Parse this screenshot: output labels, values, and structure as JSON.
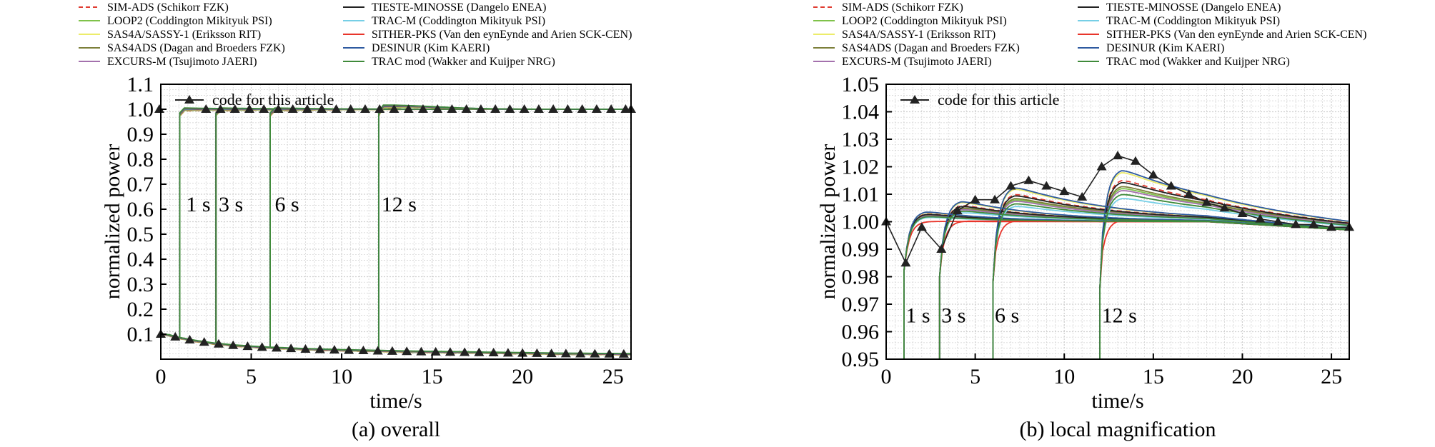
{
  "legend": {
    "series": [
      {
        "name": "SIM-ADS (Schikorr FZK)",
        "color": "#e03c31",
        "dash": true
      },
      {
        "name": "LOOP2 (Coddington Mikityuk PSI)",
        "color": "#7fc24a",
        "dash": false
      },
      {
        "name": "SAS4A/SASSY-1 (Eriksson RIT)",
        "color": "#ecec6a",
        "dash": false
      },
      {
        "name": "SAS4ADS (Dagan and Broeders FZK)",
        "color": "#7c7f3a",
        "dash": false
      },
      {
        "name": "EXCURS-M (Tsujimoto JAERI)",
        "color": "#a471ad",
        "dash": false
      },
      {
        "name": "TIESTE-MINOSSE (Dangelo ENEA)",
        "color": "#222222",
        "dash": false
      },
      {
        "name": "TRAC-M (Coddington Mikityuk PSI)",
        "color": "#76cfe6",
        "dash": false
      },
      {
        "name": "SITHER-PKS (Van den eynEynde and Arien SCK-CEN)",
        "color": "#e8352b",
        "dash": false
      },
      {
        "name": "DESINUR (Kim KAERI)",
        "color": "#2e5aa0",
        "dash": false
      },
      {
        "name": "TRAC mod (Wakker and Kuijper NRG)",
        "color": "#3f8a3a",
        "dash": false
      }
    ],
    "inner_label": "code for this article"
  },
  "chart_data": [
    {
      "type": "line",
      "caption": "(a) overall",
      "xlabel": "time/s",
      "ylabel": "normalized power",
      "xlim": [
        0,
        26
      ],
      "ylim": [
        0,
        1.1
      ],
      "x_ticks": [
        "0",
        "5",
        "10",
        "15",
        "20",
        "25"
      ],
      "y_ticks": [
        "0.1",
        "0.2",
        "0.3",
        "0.4",
        "0.5",
        "0.6",
        "0.7",
        "0.8",
        "0.9",
        "1.0",
        "1.1"
      ],
      "grid": true,
      "legend_position": "top-left",
      "annotations": [
        {
          "text": "1 s",
          "x": 1.4,
          "y": 0.62
        },
        {
          "text": "3 s",
          "x": 3.2,
          "y": 0.62
        },
        {
          "text": "6 s",
          "x": 6.3,
          "y": 0.62
        },
        {
          "text": "12 s",
          "x": 12.2,
          "y": 0.62
        }
      ],
      "events": [
        1,
        3,
        6,
        12
      ],
      "series": [
        {
          "name": "code for this article",
          "x": [
            0,
            0.5,
            1.2,
            2.5,
            3.2,
            4.5,
            6.2,
            7.5,
            12.5,
            15,
            20,
            26
          ],
          "y": [
            1.0,
            0.1,
            0.98,
            0.99,
            0.99,
            1.0,
            1.0,
            1.005,
            1.01,
            1.0,
            1.0,
            1.0
          ]
        }
      ],
      "low_branch": {
        "x": [
          0,
          0.5,
          1,
          2,
          3,
          4,
          5,
          6,
          7,
          8,
          10,
          12,
          14,
          16,
          18,
          20,
          22,
          24,
          26
        ],
        "y": [
          0.1,
          0.095,
          0.085,
          0.072,
          0.062,
          0.055,
          0.05,
          0.046,
          0.043,
          0.04,
          0.036,
          0.033,
          0.03,
          0.028,
          0.026,
          0.024,
          0.022,
          0.021,
          0.02
        ]
      }
    },
    {
      "type": "line",
      "caption": "(b) local magnification",
      "xlabel": "time/s",
      "ylabel": "normalized power",
      "xlim": [
        0,
        26
      ],
      "ylim": [
        0.95,
        1.05
      ],
      "x_ticks": [
        "0",
        "5",
        "10",
        "15",
        "20",
        "25"
      ],
      "y_ticks": [
        "0.95",
        "0.96",
        "0.97",
        "0.98",
        "0.99",
        "1.00",
        "1.01",
        "1.02",
        "1.03",
        "1.04",
        "1.05"
      ],
      "grid": true,
      "legend_position": "top-left",
      "annotations": [
        {
          "text": "1 s",
          "x": 1.1,
          "y": 0.966
        },
        {
          "text": "3 s",
          "x": 3.1,
          "y": 0.966
        },
        {
          "text": "6 s",
          "x": 6.1,
          "y": 0.966
        },
        {
          "text": "12 s",
          "x": 12.1,
          "y": 0.966
        }
      ],
      "events": [
        1,
        3,
        6,
        12
      ],
      "series": [
        {
          "name": "code for this article",
          "x": [
            0,
            1.1,
            2,
            3.1,
            4,
            5,
            6.1,
            7,
            8,
            9,
            10,
            11,
            12.1,
            13,
            14,
            15,
            16,
            17,
            18,
            19,
            20,
            21,
            22,
            23,
            24,
            25,
            26
          ],
          "y": [
            1.0,
            0.985,
            0.998,
            0.99,
            1.004,
            1.008,
            1.008,
            1.013,
            1.015,
            1.013,
            1.011,
            1.009,
            1.02,
            1.024,
            1.022,
            1.017,
            1.013,
            1.01,
            1.007,
            1.005,
            1.003,
            1.001,
            1.0,
            0.999,
            0.999,
            0.998,
            0.998
          ]
        }
      ]
    }
  ]
}
